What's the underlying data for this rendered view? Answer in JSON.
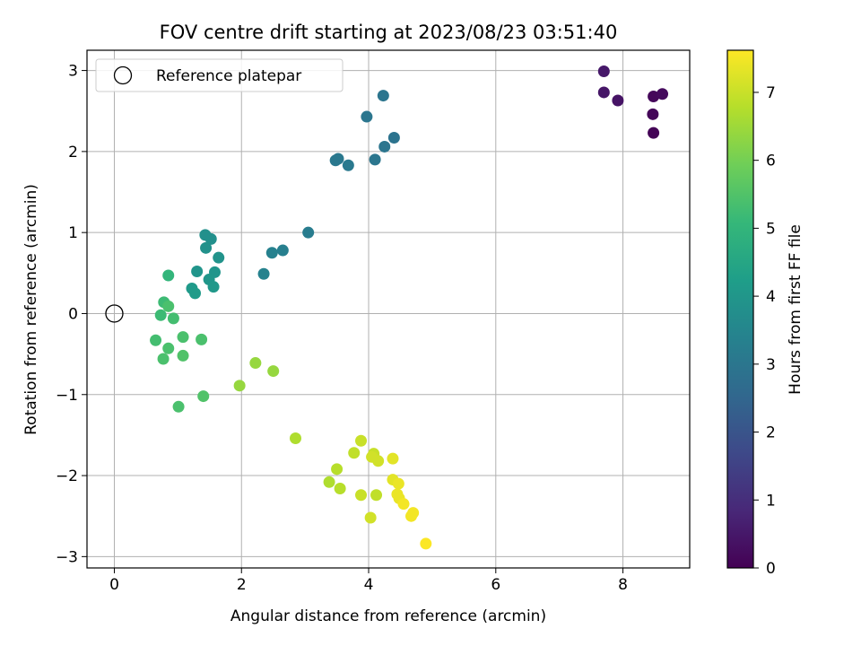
{
  "chart_data": {
    "type": "scatter",
    "title": "FOV centre drift starting at 2023/08/23 03:51:40",
    "xlabel": "Angular distance from reference (arcmin)",
    "ylabel": "Rotation from reference (arcmin)",
    "xlim": [
      -0.43,
      9.05
    ],
    "ylim": [
      -3.14,
      3.25
    ],
    "xticks": [
      0,
      2,
      4,
      6,
      8
    ],
    "yticks": [
      -3,
      -2,
      -1,
      0,
      1,
      2,
      3
    ],
    "grid": true,
    "legend": {
      "placement": "top-left",
      "entries": [
        "Reference platepar"
      ]
    },
    "reference_point": {
      "x": 0,
      "y": 0
    },
    "colorbar": {
      "label": "Hours from first FF file",
      "min": 0,
      "max": 7.62,
      "ticks": [
        0,
        1,
        2,
        3,
        4,
        5,
        6,
        7
      ],
      "colormap": "viridis",
      "stops": [
        "#440154",
        "#482878",
        "#3e4989",
        "#31688e",
        "#26828e",
        "#1f9e89",
        "#35b779",
        "#6ece58",
        "#b5de2b",
        "#fde725"
      ]
    },
    "points": [
      {
        "x": 7.7,
        "y": 2.99,
        "c": 0.5
      },
      {
        "x": 7.7,
        "y": 2.73,
        "c": 0.45
      },
      {
        "x": 7.92,
        "y": 2.63,
        "c": 0.4
      },
      {
        "x": 8.48,
        "y": 2.68,
        "c": 0.15
      },
      {
        "x": 8.62,
        "y": 2.71,
        "c": 0.2
      },
      {
        "x": 8.47,
        "y": 2.46,
        "c": 0.1
      },
      {
        "x": 8.48,
        "y": 2.23,
        "c": 0.05
      },
      {
        "x": 4.23,
        "y": 2.69,
        "c": 2.95
      },
      {
        "x": 3.97,
        "y": 2.43,
        "c": 3.0
      },
      {
        "x": 4.4,
        "y": 2.17,
        "c": 2.9
      },
      {
        "x": 4.25,
        "y": 2.06,
        "c": 2.95
      },
      {
        "x": 4.1,
        "y": 1.9,
        "c": 3.0
      },
      {
        "x": 3.48,
        "y": 1.89,
        "c": 3.05
      },
      {
        "x": 3.52,
        "y": 1.91,
        "c": 3.05
      },
      {
        "x": 3.68,
        "y": 1.83,
        "c": 3.1
      },
      {
        "x": 3.05,
        "y": 1.0,
        "c": 3.2
      },
      {
        "x": 2.65,
        "y": 0.78,
        "c": 3.3
      },
      {
        "x": 2.48,
        "y": 0.75,
        "c": 3.35
      },
      {
        "x": 2.35,
        "y": 0.49,
        "c": 3.4
      },
      {
        "x": 1.43,
        "y": 0.97,
        "c": 3.8
      },
      {
        "x": 1.52,
        "y": 0.92,
        "c": 3.8
      },
      {
        "x": 1.44,
        "y": 0.81,
        "c": 3.85
      },
      {
        "x": 1.64,
        "y": 0.69,
        "c": 3.9
      },
      {
        "x": 1.3,
        "y": 0.52,
        "c": 3.95
      },
      {
        "x": 1.58,
        "y": 0.51,
        "c": 3.95
      },
      {
        "x": 1.49,
        "y": 0.42,
        "c": 4.0
      },
      {
        "x": 1.56,
        "y": 0.33,
        "c": 4.05
      },
      {
        "x": 1.22,
        "y": 0.31,
        "c": 4.1
      },
      {
        "x": 1.27,
        "y": 0.25,
        "c": 4.15
      },
      {
        "x": 0.85,
        "y": 0.47,
        "c": 5.0
      },
      {
        "x": 0.78,
        "y": 0.14,
        "c": 5.2
      },
      {
        "x": 0.85,
        "y": 0.09,
        "c": 5.4
      },
      {
        "x": 0.73,
        "y": -0.02,
        "c": 5.2
      },
      {
        "x": 0.93,
        "y": -0.06,
        "c": 5.3
      },
      {
        "x": 0.65,
        "y": -0.33,
        "c": 5.3
      },
      {
        "x": 1.08,
        "y": -0.29,
        "c": 5.4
      },
      {
        "x": 1.37,
        "y": -0.32,
        "c": 5.4
      },
      {
        "x": 0.85,
        "y": -0.43,
        "c": 5.4
      },
      {
        "x": 0.77,
        "y": -0.56,
        "c": 5.4
      },
      {
        "x": 1.08,
        "y": -0.52,
        "c": 5.5
      },
      {
        "x": 1.4,
        "y": -1.02,
        "c": 5.5
      },
      {
        "x": 1.01,
        "y": -1.15,
        "c": 5.4
      },
      {
        "x": 2.22,
        "y": -0.61,
        "c": 6.4
      },
      {
        "x": 2.5,
        "y": -0.71,
        "c": 6.4
      },
      {
        "x": 1.97,
        "y": -0.89,
        "c": 6.4
      },
      {
        "x": 2.85,
        "y": -1.54,
        "c": 6.7
      },
      {
        "x": 3.88,
        "y": -1.57,
        "c": 7.0
      },
      {
        "x": 3.77,
        "y": -1.72,
        "c": 6.9
      },
      {
        "x": 4.08,
        "y": -1.73,
        "c": 7.0
      },
      {
        "x": 4.05,
        "y": -1.77,
        "c": 7.1
      },
      {
        "x": 4.15,
        "y": -1.82,
        "c": 7.1
      },
      {
        "x": 4.38,
        "y": -1.79,
        "c": 7.3
      },
      {
        "x": 3.5,
        "y": -1.92,
        "c": 6.8
      },
      {
        "x": 4.38,
        "y": -2.05,
        "c": 7.3
      },
      {
        "x": 4.47,
        "y": -2.1,
        "c": 7.4
      },
      {
        "x": 3.38,
        "y": -2.08,
        "c": 6.7
      },
      {
        "x": 3.55,
        "y": -2.16,
        "c": 6.8
      },
      {
        "x": 3.88,
        "y": -2.24,
        "c": 7.0
      },
      {
        "x": 4.12,
        "y": -2.24,
        "c": 6.9
      },
      {
        "x": 4.45,
        "y": -2.23,
        "c": 7.4
      },
      {
        "x": 4.48,
        "y": -2.28,
        "c": 7.4
      },
      {
        "x": 4.55,
        "y": -2.35,
        "c": 7.5
      },
      {
        "x": 4.7,
        "y": -2.46,
        "c": 7.5
      },
      {
        "x": 4.67,
        "y": -2.5,
        "c": 7.5
      },
      {
        "x": 4.03,
        "y": -2.52,
        "c": 7.1
      },
      {
        "x": 4.9,
        "y": -2.84,
        "c": 7.6
      }
    ]
  }
}
